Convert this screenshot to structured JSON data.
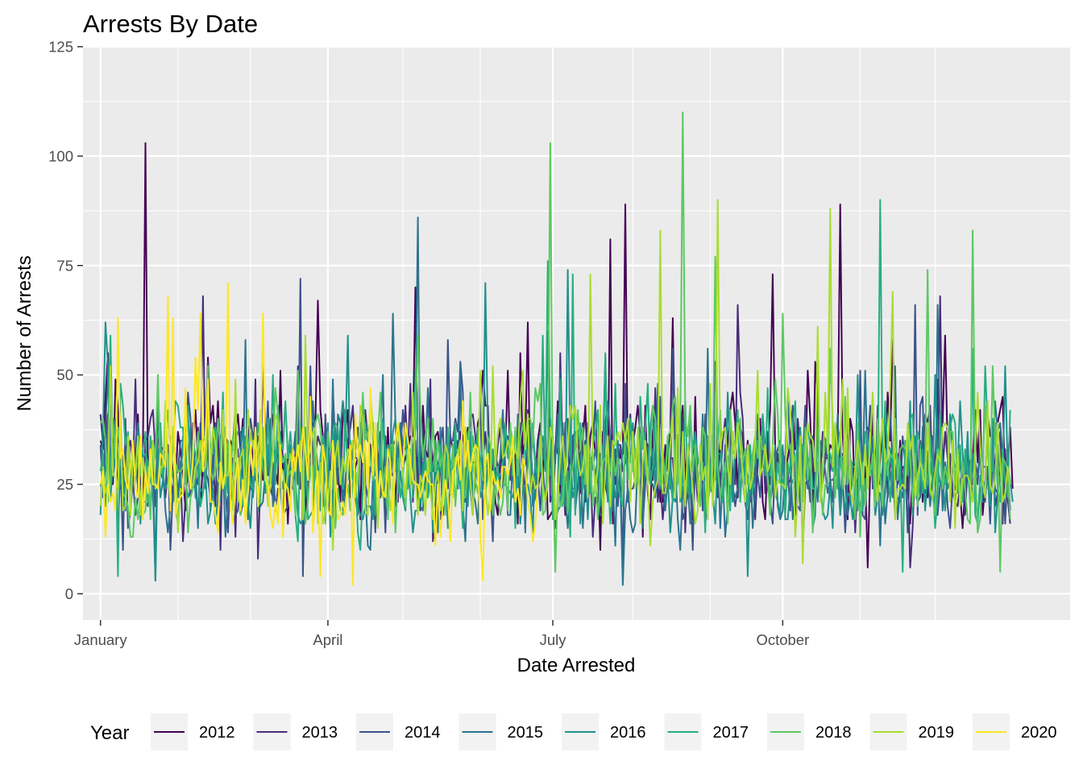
{
  "chart_data": {
    "type": "line",
    "title": "Arrests By Date",
    "xlabel": "Date Arrested",
    "ylabel": "Number of Arrests",
    "x_axis": {
      "unit": "day of year",
      "range": [
        -6,
        389
      ],
      "ticks": [
        {
          "label": "January",
          "x": 1
        },
        {
          "label": "April",
          "x": 92
        },
        {
          "label": "July",
          "x": 182
        },
        {
          "label": "October",
          "x": 274
        }
      ],
      "minor_months": [
        32,
        61,
        122,
        153,
        214,
        245,
        305,
        335
      ]
    },
    "y_axis": {
      "range": [
        -6,
        125
      ],
      "ticks": [
        0,
        25,
        50,
        75,
        100,
        125
      ]
    },
    "grid": true,
    "legend": {
      "title": "Year",
      "position": "bottom"
    },
    "series": [
      {
        "name": "2012",
        "color": "#440154",
        "base": 31,
        "amp": 12,
        "days": 366,
        "spikes": [
          [
            19,
            103
          ],
          [
            211,
            89
          ],
          [
            297,
            89
          ],
          [
            205,
            81
          ],
          [
            270,
            73
          ],
          [
            127,
            70
          ],
          [
            88,
            67
          ]
        ],
        "dips": [
          [
            308,
            6
          ]
        ]
      },
      {
        "name": "2013",
        "color": "#472D7B",
        "base": 28,
        "amp": 11,
        "days": 365,
        "spikes": [
          [
            42,
            68
          ],
          [
            337,
            68
          ],
          [
            256,
            66
          ],
          [
            180,
            60
          ]
        ],
        "dips": [
          [
            64,
            8
          ],
          [
            325,
            6
          ]
        ]
      },
      {
        "name": "2014",
        "color": "#3B528B",
        "base": 27,
        "amp": 11,
        "days": 365,
        "spikes": [
          [
            81,
            72
          ],
          [
            327,
            66
          ],
          [
            140,
            58
          ]
        ],
        "dips": [
          [
            82,
            4
          ],
          [
            210,
            5
          ]
        ]
      },
      {
        "name": "2015",
        "color": "#2C728E",
        "base": 27,
        "amp": 11,
        "days": 365,
        "spikes": [
          [
            128,
            86
          ],
          [
            336,
            66
          ],
          [
            118,
            64
          ]
        ],
        "dips": [
          [
            210,
            2
          ],
          [
            23,
            3
          ]
        ]
      },
      {
        "name": "2016",
        "color": "#21908C",
        "base": 27,
        "amp": 11,
        "days": 366,
        "spikes": [
          [
            3,
            62
          ],
          [
            155,
            71
          ],
          [
            188,
            74
          ],
          [
            100,
            59
          ]
        ],
        "dips": [
          [
            23,
            3
          ],
          [
            260,
            4
          ]
        ]
      },
      {
        "name": "2017",
        "color": "#27AD81",
        "base": 30,
        "amp": 12,
        "days": 365,
        "spikes": [
          [
            180,
            76
          ],
          [
            313,
            90
          ],
          [
            5,
            59
          ],
          [
            190,
            73
          ]
        ],
        "dips": [
          [
            8,
            4
          ],
          [
            322,
            5
          ]
        ]
      },
      {
        "name": "2018",
        "color": "#5DC863",
        "base": 29,
        "amp": 12,
        "days": 365,
        "spikes": [
          [
            181,
            103
          ],
          [
            234,
            110
          ],
          [
            350,
            83
          ],
          [
            332,
            74
          ],
          [
            247,
            77
          ]
        ],
        "dips": [
          [
            183,
            5
          ],
          [
            361,
            5
          ]
        ]
      },
      {
        "name": "2019",
        "color": "#AADC32",
        "base": 29,
        "amp": 12,
        "days": 365,
        "spikes": [
          [
            94,
            76
          ],
          [
            225,
            83
          ],
          [
            248,
            90
          ],
          [
            293,
            88
          ],
          [
            197,
            73
          ],
          [
            318,
            69
          ]
        ],
        "dips": [
          [
            94,
            10
          ],
          [
            282,
            7
          ]
        ]
      },
      {
        "name": "2020",
        "color": "#FDE725",
        "base": 26,
        "amp": 11,
        "days": 176,
        "spikes": [
          [
            28,
            68
          ],
          [
            41,
            64
          ],
          [
            52,
            71
          ],
          [
            66,
            64
          ],
          [
            30,
            63
          ],
          [
            8,
            63
          ]
        ],
        "dips": [
          [
            102,
            2
          ],
          [
            89,
            4
          ],
          [
            154,
            3
          ]
        ]
      }
    ]
  }
}
